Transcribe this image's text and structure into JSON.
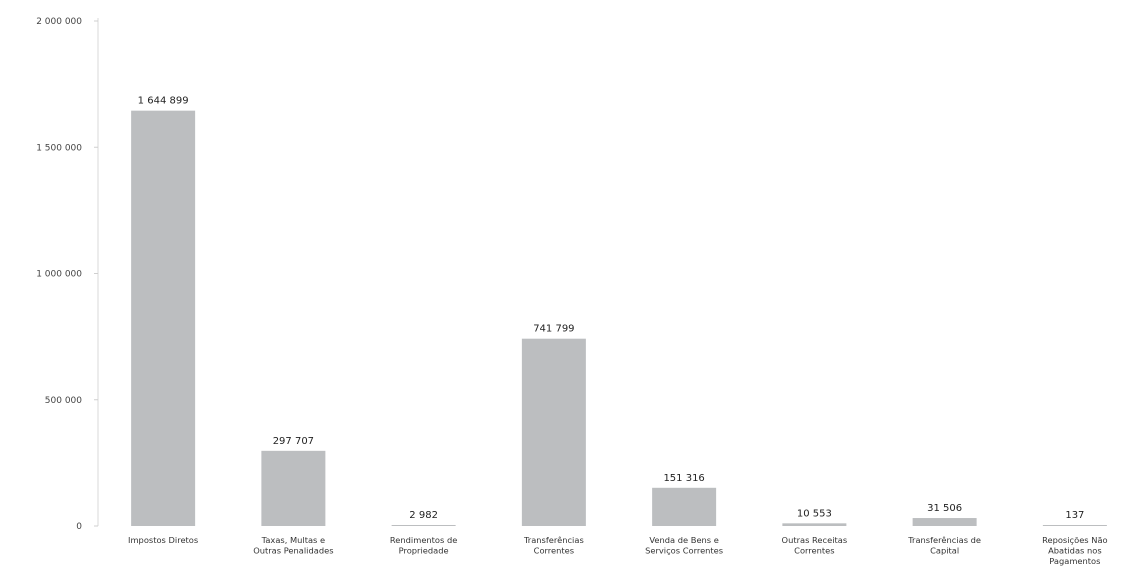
{
  "chart_data": {
    "type": "bar",
    "title": "",
    "xlabel": "",
    "ylabel": "",
    "ylim": [
      0,
      2000000
    ],
    "yticks": [
      0,
      500000,
      1000000,
      1500000,
      2000000
    ],
    "ytick_labels": [
      "0",
      "500 000",
      "1 000 000",
      "1 500 000",
      "2 000 000"
    ],
    "grid": false,
    "legend": "none",
    "bar_color": "#bcbec0",
    "categories": [
      [
        "Impostos Diretos"
      ],
      [
        "Taxas, Multas e",
        "Outras Penalidades"
      ],
      [
        "Rendimentos de",
        "Propriedade"
      ],
      [
        "Transferências",
        "Correntes"
      ],
      [
        "Venda de Bens e",
        "Serviços Correntes"
      ],
      [
        "Outras Receitas",
        "Correntes"
      ],
      [
        "Transferências de",
        "Capital"
      ],
      [
        "Reposições Não",
        "Abatidas nos",
        "Pagamentos"
      ]
    ],
    "values": [
      1644899,
      297707,
      2982,
      741799,
      151316,
      10553,
      31506,
      137
    ],
    "value_labels": [
      "1 644 899",
      "297 707",
      "2 982",
      "741 799",
      "151 316",
      "10 553",
      "31 506",
      "137"
    ]
  }
}
